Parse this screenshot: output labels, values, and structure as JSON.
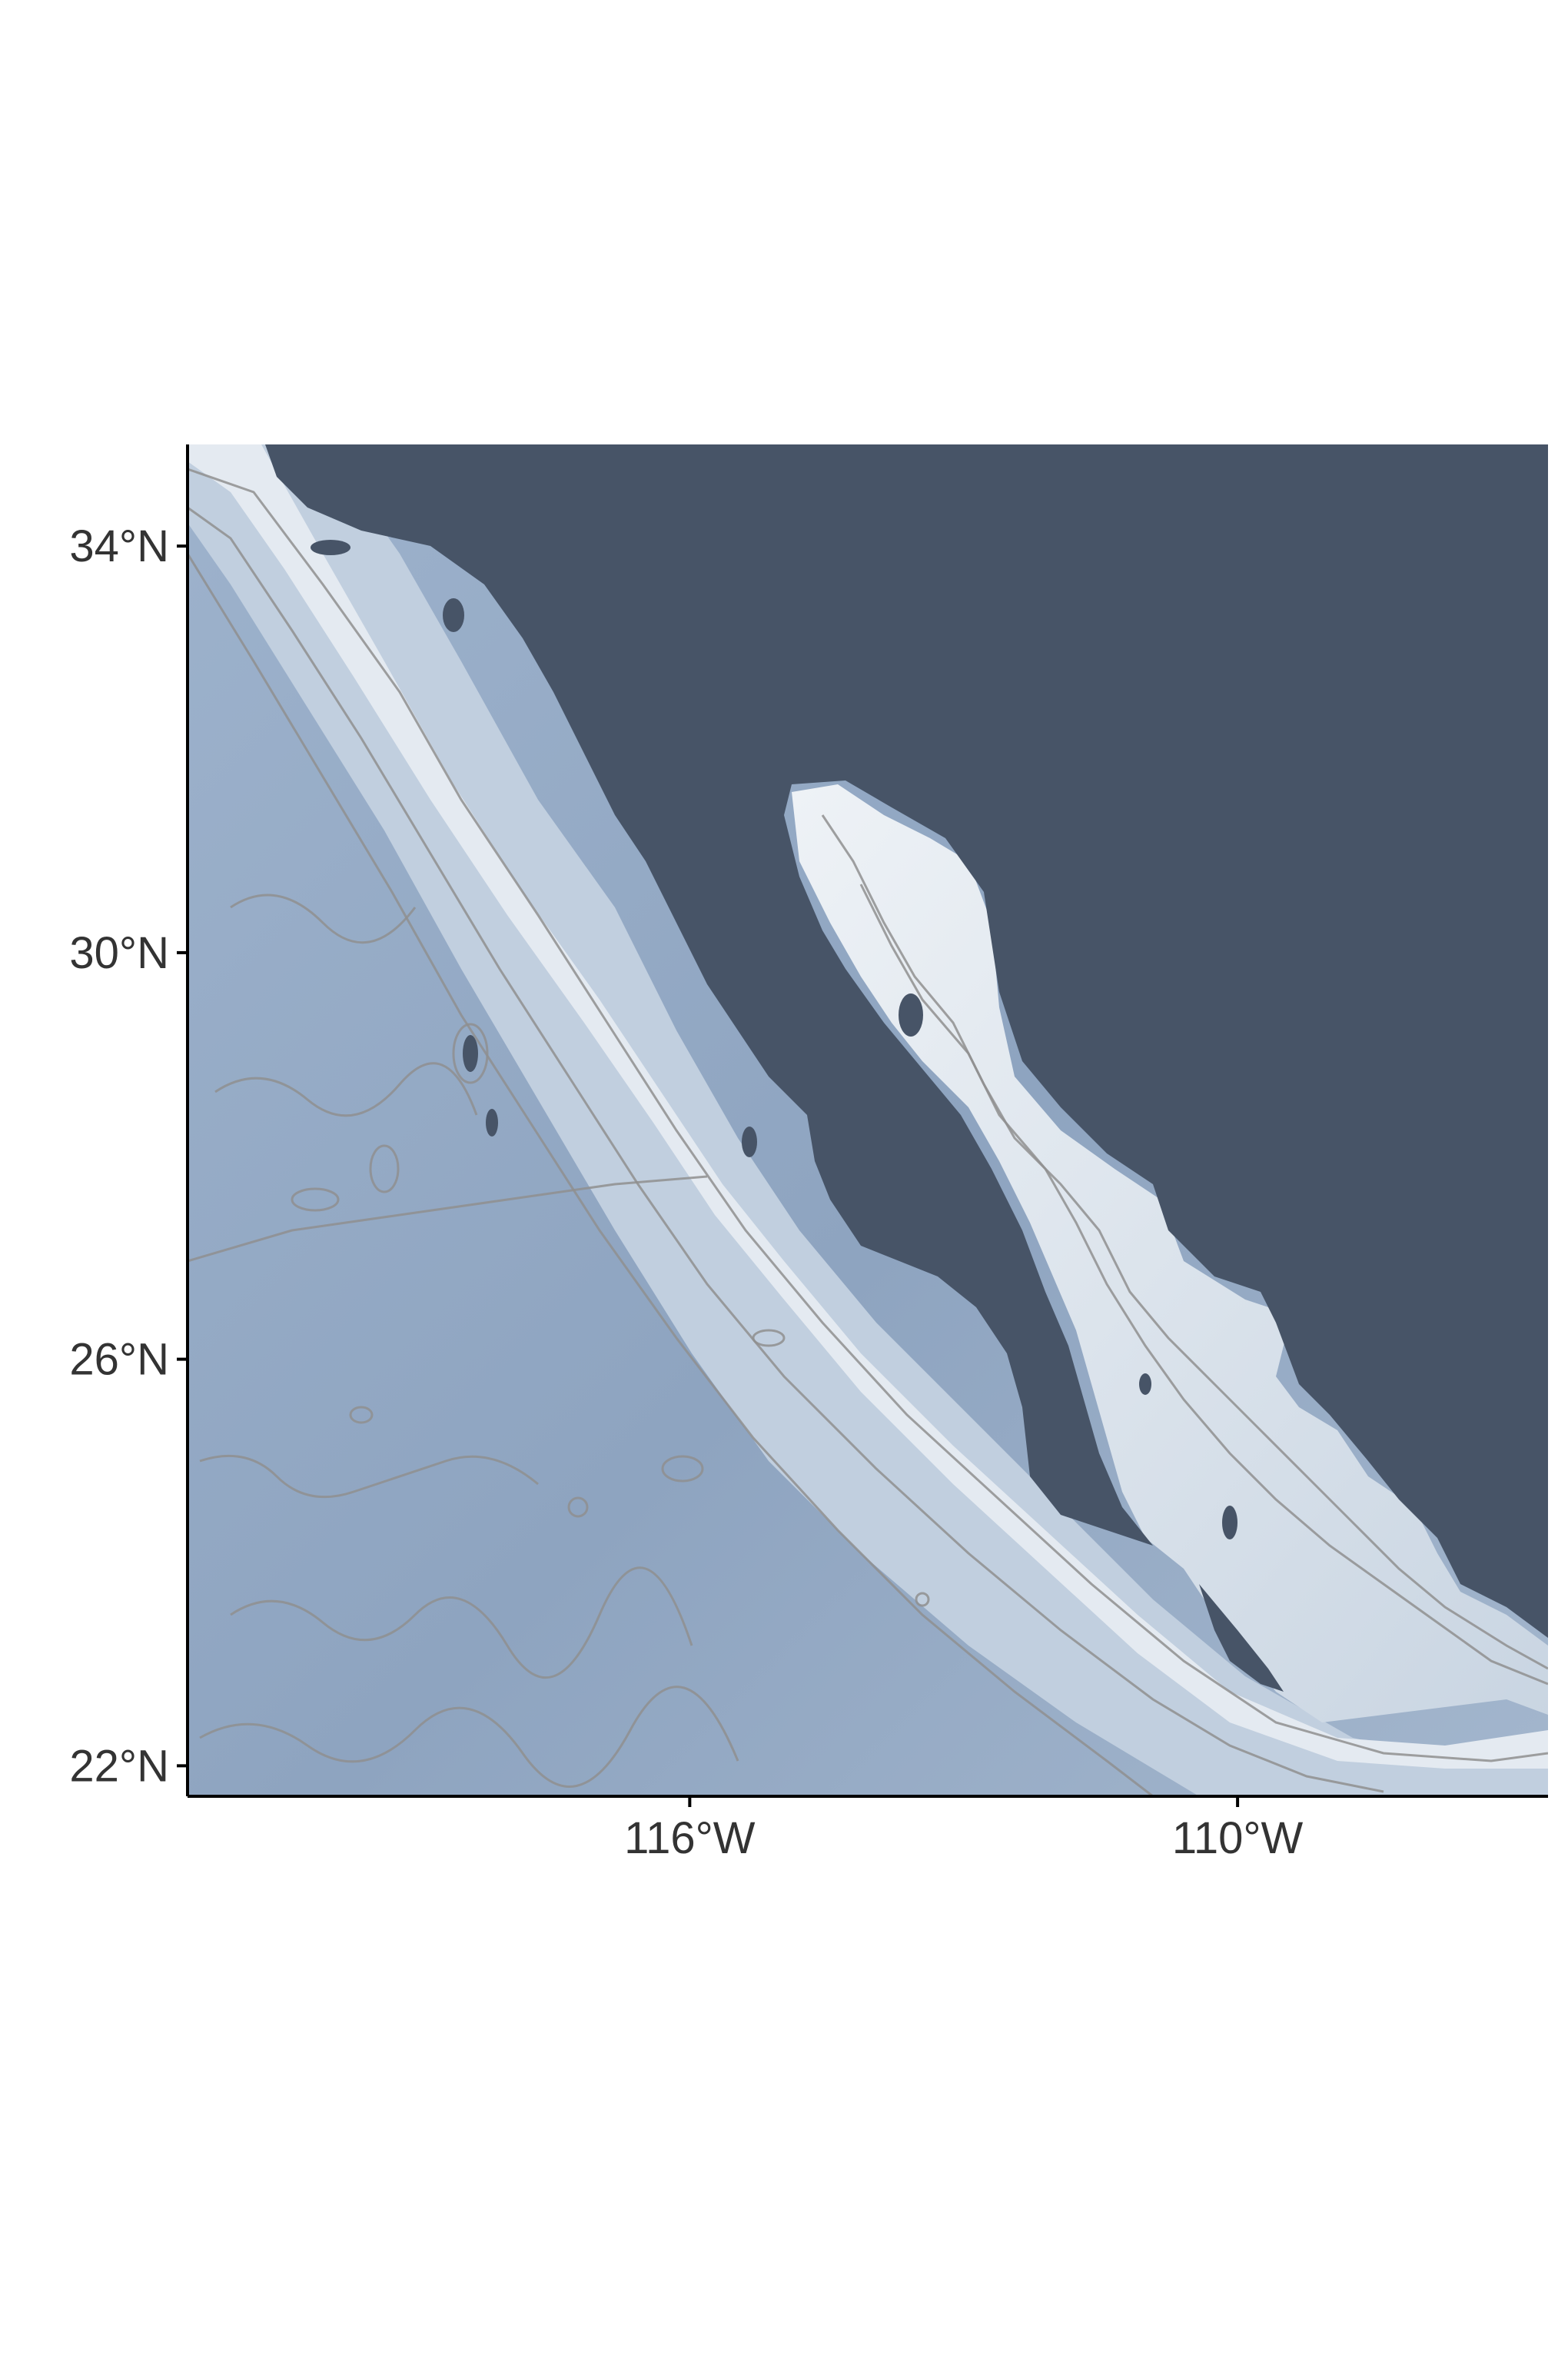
{
  "map": {
    "projection": "geographic",
    "extent": {
      "lon_min": -121.5,
      "lon_max": -106.6,
      "lat_min": 21.7,
      "lat_max": 35.0
    },
    "colors": {
      "land": "#475467",
      "deep_ocean": "#8aa1bf",
      "mid_ocean": "#a9bcd2",
      "shelf": "#f3f6f9",
      "contour": "#8f8f8f",
      "axis": "#000000",
      "tick_text": "#333333",
      "background": "#ffffff"
    },
    "layers": [
      "bathymetry-raster",
      "bathymetry-contours",
      "land-mask"
    ]
  },
  "axes": {
    "y_ticks": [
      {
        "value": 34,
        "label": "34°N"
      },
      {
        "value": 30,
        "label": "30°N"
      },
      {
        "value": 26,
        "label": "26°N"
      },
      {
        "value": 22,
        "label": "22°N"
      }
    ],
    "x_ticks": [
      {
        "value": -116,
        "label": "116°W"
      },
      {
        "value": -110,
        "label": "110°W"
      }
    ]
  }
}
